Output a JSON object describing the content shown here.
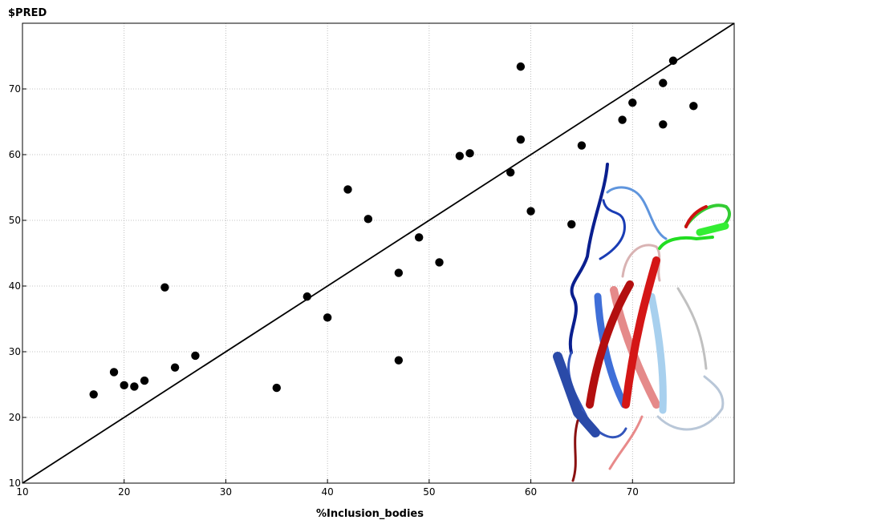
{
  "chart_data": {
    "type": "scatter",
    "title": "",
    "xlabel": "%Inclusion_bodies",
    "ylabel": "$PRED",
    "xlim": [
      10,
      80
    ],
    "ylim": [
      10,
      80
    ],
    "xticks": [
      10,
      20,
      30,
      40,
      50,
      60,
      70
    ],
    "yticks": [
      10,
      20,
      30,
      40,
      50,
      60,
      70
    ],
    "grid": true,
    "legend": "none",
    "colors": {
      "points": "#000000",
      "line": "#000000",
      "grid": "#b0b0b0"
    },
    "series": [
      {
        "values": [
          [
            17,
            23.5
          ],
          [
            19,
            26.9
          ],
          [
            20,
            24.9
          ],
          [
            21,
            24.7
          ],
          [
            22,
            25.6
          ],
          [
            24,
            39.8
          ],
          [
            25,
            27.6
          ],
          [
            27,
            29.4
          ],
          [
            35,
            24.5
          ],
          [
            38,
            38.4
          ],
          [
            40,
            35.2
          ],
          [
            42,
            54.7
          ],
          [
            44,
            50.2
          ],
          [
            47,
            42.0
          ],
          [
            47,
            28.7
          ],
          [
            49,
            47.4
          ],
          [
            51,
            43.6
          ],
          [
            53,
            59.8
          ],
          [
            54,
            60.2
          ],
          [
            58,
            57.3
          ],
          [
            59,
            73.4
          ],
          [
            59,
            62.3
          ],
          [
            60,
            51.4
          ],
          [
            64,
            49.4
          ],
          [
            65,
            61.4
          ],
          [
            69,
            65.3
          ],
          [
            70,
            67.9
          ],
          [
            73,
            70.9
          ],
          [
            73,
            64.6
          ],
          [
            74,
            74.3
          ],
          [
            76,
            67.4
          ]
        ]
      }
    ],
    "reference_line": {
      "from": [
        10,
        10
      ],
      "to": [
        80,
        80
      ]
    },
    "inset_image": "protein-ribbon-structure"
  }
}
